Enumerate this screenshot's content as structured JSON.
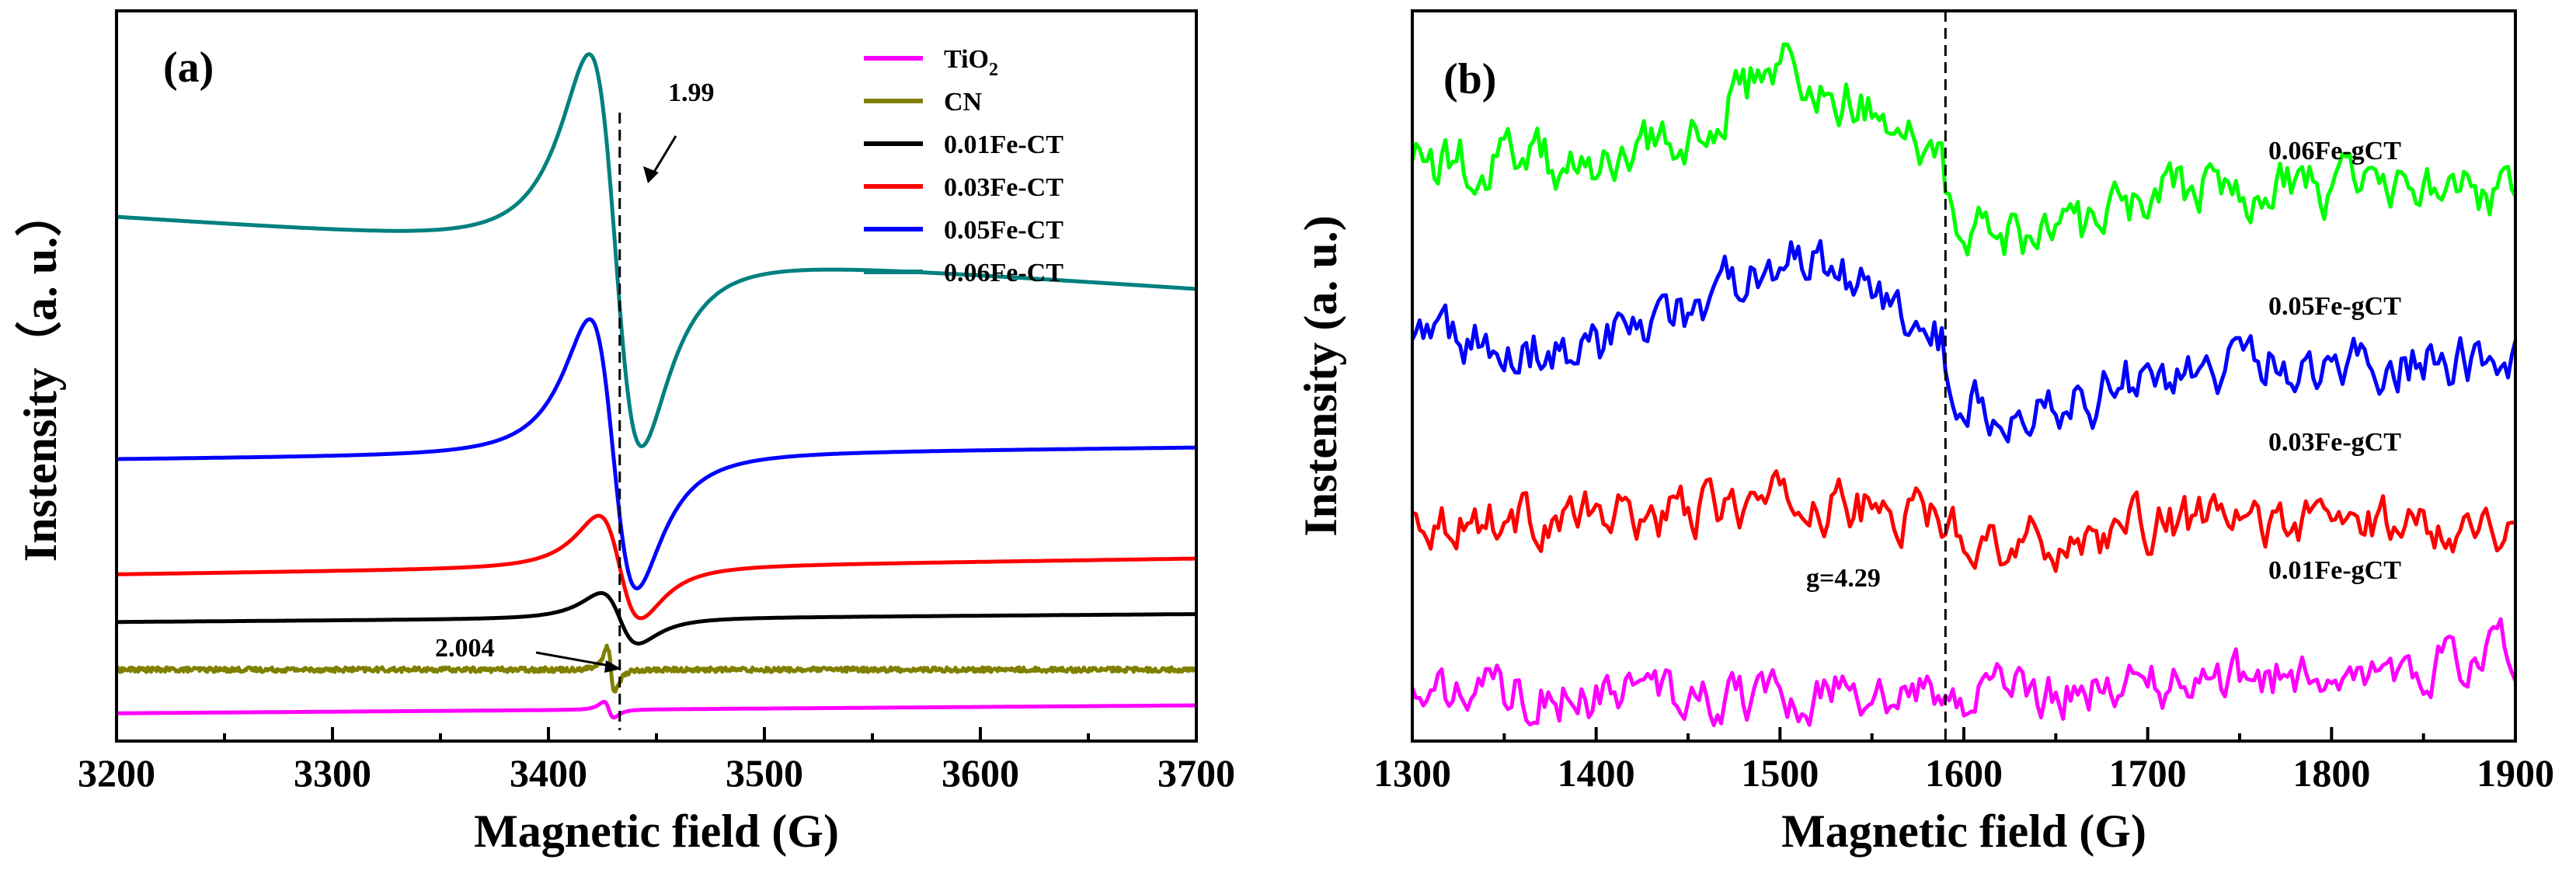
{
  "chart_data": [
    {
      "panel": "(a)",
      "type": "line",
      "xlabel": "Magnetic field (G)",
      "ylabel": "Instensity（a. u.）",
      "xlim": [
        3200,
        3700
      ],
      "xticks": [
        3200,
        3300,
        3400,
        3500,
        3600,
        3700
      ],
      "yticks": "none (arbitrary units, traces vertically offset)",
      "grid": false,
      "legend_position": "top-right",
      "legend": [
        {
          "text": "TiO",
          "sub": "2",
          "color": "#ff00ff"
        },
        {
          "text": "CN",
          "sub": "",
          "color": "#808000"
        },
        {
          "text": "0.01Fe-CT",
          "sub": "",
          "color": "#000000"
        },
        {
          "text": "0.03Fe-CT",
          "sub": "",
          "color": "#ff0000"
        },
        {
          "text": "0.05Fe-CT",
          "sub": "",
          "color": "#0000ff"
        },
        {
          "text": "0.06Fe-CT",
          "sub": "",
          "color": "#008080"
        }
      ],
      "series": [
        {
          "name": "TiO2",
          "color": "#ff00ff",
          "baseline": 0.35,
          "peak_x": 3424,
          "amplitude": 0.1,
          "width": 4,
          "tail_end": 0.45
        },
        {
          "name": "CN",
          "color": "#808000",
          "baseline": 0.9,
          "peak_x": 3426,
          "amplitude": 0.28,
          "width": 3,
          "noise": 0.03,
          "tail_end": 0.9
        },
        {
          "name": "0.01Fe-CT",
          "color": "#000000",
          "baseline": 1.5,
          "peak_x": 3418,
          "amplitude": 0.32,
          "width": 15,
          "tail_end": 1.6
        },
        {
          "name": "0.03Fe-CT",
          "color": "#ff0000",
          "baseline": 2.1,
          "peak_x": 3416,
          "amplitude": 0.65,
          "width": 17,
          "tail_end": 2.3
        },
        {
          "name": "0.05Fe-CT",
          "color": "#0000ff",
          "baseline": 3.55,
          "peak_x": 3411,
          "amplitude": 1.7,
          "width": 19,
          "tail_end": 3.7
        },
        {
          "name": "0.06Fe-CT",
          "color": "#008080",
          "baseline": 6.6,
          "peak_x": 3410,
          "amplitude": 2.45,
          "width": 21,
          "tail_end": 5.7
        }
      ],
      "annotations": [
        {
          "text": "1.99",
          "x": 3433,
          "kind": "dashed vertical line with arrow"
        },
        {
          "text": "2.004",
          "x": 3428,
          "kind": "arrow to CN signal"
        }
      ]
    },
    {
      "panel": "(b)",
      "type": "line",
      "xlabel": "Magnetic field (G)",
      "ylabel": "Instensity (a. u.)",
      "xlim": [
        1300,
        1900
      ],
      "xticks": [
        1300,
        1400,
        1500,
        1600,
        1700,
        1800,
        1900
      ],
      "yticks": "none (arbitrary units, traces vertically offset)",
      "grid": false,
      "series": [
        {
          "name": "0.06Fe-gCT",
          "color": "#00ff00",
          "baseline": 5.3,
          "hump": 0.9,
          "dip": -0.55,
          "noise": 0.22
        },
        {
          "name": "0.05Fe-gCT",
          "color": "#0000ff",
          "baseline": 3.6,
          "hump": 0.8,
          "dip": -0.5,
          "noise": 0.22
        },
        {
          "name": "0.03Fe-gCT",
          "color": "#ff0000",
          "baseline": 2.1,
          "hump": 0.15,
          "dip": -0.2,
          "noise": 0.2
        },
        {
          "name": "0.01Fe-gCT",
          "color": "#ff00ff",
          "baseline": 0.45,
          "hump": 0.0,
          "dip": 0.0,
          "rise": 0.4,
          "noise": 0.2
        }
      ],
      "annotations": [
        {
          "text": "g=4.29",
          "x": 1590,
          "kind": "dashed vertical line"
        }
      ]
    }
  ]
}
